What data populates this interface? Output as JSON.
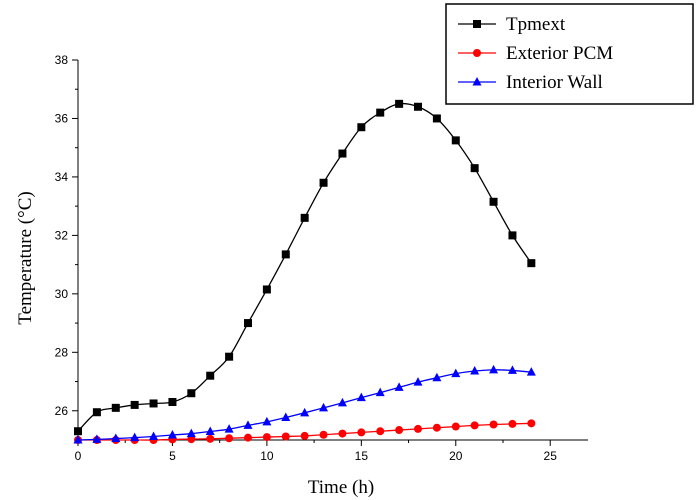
{
  "chart_data": {
    "type": "line",
    "title": "",
    "xlabel": "Time (h)",
    "ylabel": "Temperature (°C)",
    "xlim": [
      0,
      27
    ],
    "ylim": [
      25,
      38
    ],
    "x_ticks": [
      0,
      5,
      10,
      15,
      20,
      25
    ],
    "y_ticks": [
      26,
      28,
      30,
      32,
      34,
      36,
      38
    ],
    "grid": false,
    "legend_position": "top-right",
    "x": [
      0,
      1,
      2,
      3,
      4,
      5,
      6,
      7,
      8,
      9,
      10,
      11,
      12,
      13,
      14,
      15,
      16,
      17,
      18,
      19,
      20,
      21,
      22,
      23,
      24
    ],
    "series": [
      {
        "name": "Tpmext",
        "marker": "square",
        "color": "#000000",
        "values": [
          25.3,
          25.95,
          26.1,
          26.2,
          26.25,
          26.3,
          26.6,
          27.2,
          27.85,
          29.0,
          30.15,
          31.35,
          32.6,
          33.8,
          34.8,
          35.7,
          36.2,
          36.5,
          36.4,
          36.0,
          35.25,
          34.3,
          33.15,
          32.0,
          31.05
        ]
      },
      {
        "name": "Exterior PCM",
        "marker": "circle",
        "color": "#ff0000",
        "values": [
          25.0,
          25.0,
          25.0,
          25.0,
          25.0,
          25.02,
          25.03,
          25.04,
          25.06,
          25.08,
          25.1,
          25.12,
          25.14,
          25.18,
          25.22,
          25.26,
          25.3,
          25.34,
          25.38,
          25.42,
          25.46,
          25.5,
          25.53,
          25.55,
          25.57
        ]
      },
      {
        "name": "Interior Wall",
        "marker": "triangle",
        "color": "#0000ff",
        "values": [
          25.0,
          25.02,
          25.05,
          25.08,
          25.12,
          25.17,
          25.22,
          25.29,
          25.37,
          25.5,
          25.62,
          25.77,
          25.93,
          26.1,
          26.27,
          26.45,
          26.62,
          26.8,
          26.98,
          27.13,
          27.27,
          27.36,
          27.4,
          27.38,
          27.32
        ]
      }
    ]
  }
}
